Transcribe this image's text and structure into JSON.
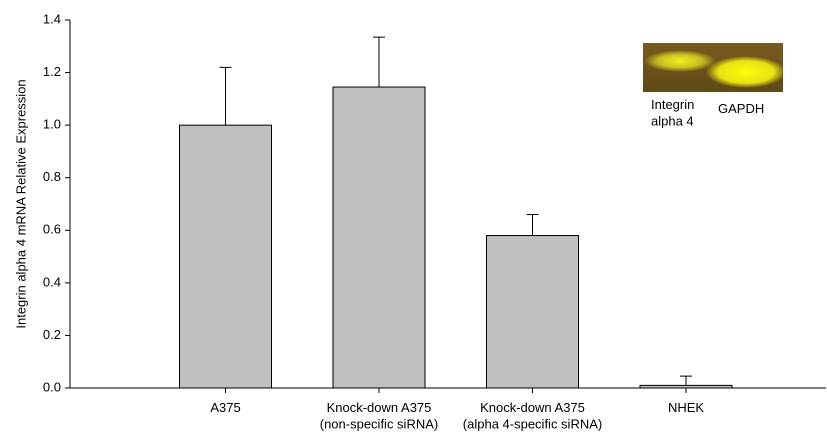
{
  "chart_data": {
    "type": "bar",
    "y_label": "Integrin alpha 4 mRNA Relative Expression",
    "categories": [
      "A375",
      "Knock-down A375\n(non-specific siRNA)",
      "Knock-down A375\n(alpha 4-specific siRNA)",
      "NHEK"
    ],
    "values": [
      1.0,
      1.145,
      0.58,
      0.01
    ],
    "errors": [
      0.22,
      0.19,
      0.08,
      0.035
    ],
    "color": "#c0c0c0",
    "ylim": [
      0,
      1.4
    ],
    "yticks": [
      {
        "value": 0,
        "label": "0.0"
      },
      0.2,
      0.4,
      0.6,
      0.8,
      {
        "value": 1,
        "label": "1.0"
      },
      1.2,
      1.4
    ],
    "inset_labels": [
      "Integrin\nalpha 4",
      "GAPDH"
    ]
  }
}
